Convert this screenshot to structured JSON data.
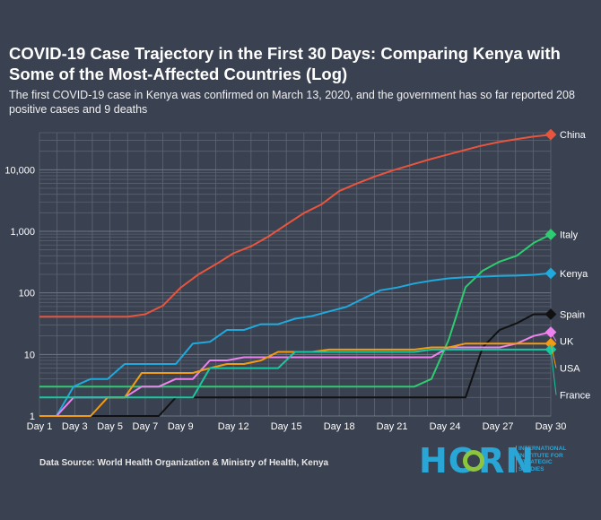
{
  "header": {
    "title": "COVID-19 Case Trajectory in the First 30 Days: Comparing Kenya with Some of the Most-Affected Countries (Log)",
    "subtitle": "The first COVID-19 case in Kenya was confirmed on March 13, 2020, and the government has so far reported 208 positive cases and 9 deaths"
  },
  "footer": {
    "source": "Data Source: World Health Organization & Ministry of Health, Kenya",
    "logo_text": "HORN",
    "logo_subtext": "INTERNATIONAL INSTITUTE FOR STRATEGIC STUDIES"
  },
  "chart_data": {
    "type": "line",
    "yscale": "log",
    "ylim": [
      1,
      40000
    ],
    "xlim": [
      1,
      30
    ],
    "y_ticks": [
      {
        "value": 1,
        "label": "1"
      },
      {
        "value": 10,
        "label": "10"
      },
      {
        "value": 100,
        "label": "100"
      },
      {
        "value": 1000,
        "label": "1,000"
      },
      {
        "value": 10000,
        "label": "10,000"
      }
    ],
    "x_ticks": [
      {
        "value": 1,
        "label": "Day 1"
      },
      {
        "value": 3,
        "label": "Day 3"
      },
      {
        "value": 5,
        "label": "Day 5"
      },
      {
        "value": 7,
        "label": "Day 7"
      },
      {
        "value": 9,
        "label": "Day 9"
      },
      {
        "value": 12,
        "label": "Day 12"
      },
      {
        "value": 15,
        "label": "Day 15"
      },
      {
        "value": 18,
        "label": "Day 18"
      },
      {
        "value": 21,
        "label": "Day 21"
      },
      {
        "value": 24,
        "label": "Day 24"
      },
      {
        "value": 27,
        "label": "Day 27"
      },
      {
        "value": 30,
        "label": "Day 30"
      }
    ],
    "grid": true,
    "legend": "end-of-line labels",
    "series": [
      {
        "name": "China",
        "color": "#e8553e",
        "values": [
          41,
          41,
          41,
          41,
          41,
          41,
          45,
          62,
          121,
          198,
          291,
          440,
          571,
          830,
          1287,
          1975,
          2744,
          4515,
          5974,
          7711,
          9692,
          11791,
          14380,
          17205,
          20438,
          24324,
          28018,
          31161,
          34546,
          37198
        ]
      },
      {
        "name": "Italy",
        "color": "#2ecc71",
        "values": [
          3,
          3,
          3,
          3,
          3,
          3,
          3,
          3,
          3,
          3,
          3,
          3,
          3,
          3,
          3,
          3,
          3,
          3,
          3,
          3,
          3,
          3,
          3,
          4,
          17,
          124,
          229,
          322,
          400,
          650,
          888
        ]
      },
      {
        "name": "Kenya",
        "color": "#1fa9dc",
        "values": [
          1,
          1,
          3,
          4,
          4,
          7,
          7,
          7,
          7,
          15,
          16,
          25,
          25,
          31,
          31,
          38,
          42,
          50,
          59,
          81,
          110,
          122,
          142,
          158,
          172,
          179,
          184,
          189,
          191,
          197,
          208
        ]
      },
      {
        "name": "Spain",
        "color": "#111111",
        "values": [
          1,
          1,
          1,
          1,
          1,
          1,
          1,
          1,
          2,
          2,
          2,
          2,
          2,
          2,
          2,
          2,
          2,
          2,
          2,
          2,
          2,
          2,
          2,
          2,
          2,
          2,
          13,
          25,
          32,
          45,
          45
        ]
      },
      {
        "name": "UK",
        "color": "#ee82ee",
        "values": [
          1,
          1,
          2,
          2,
          2,
          2,
          3,
          3,
          4,
          4,
          8,
          8,
          9,
          9,
          9,
          9,
          9,
          9,
          9,
          9,
          9,
          9,
          9,
          9,
          13,
          13,
          13,
          13,
          15,
          20,
          23
        ]
      },
      {
        "name": "USA",
        "color": "#f39c12",
        "values": [
          1,
          1,
          1,
          1,
          2,
          2,
          5,
          5,
          5,
          5,
          6,
          7,
          7,
          8,
          11,
          11,
          11,
          12,
          12,
          12,
          12,
          12,
          12,
          13,
          13,
          15,
          15,
          15,
          15,
          15,
          15
        ]
      },
      {
        "name": "France",
        "color": "#17c8a0",
        "values": [
          2,
          2,
          2,
          2,
          2,
          2,
          2,
          2,
          2,
          2,
          6,
          6,
          6,
          6,
          6,
          11,
          11,
          11,
          11,
          11,
          11,
          11,
          11,
          12,
          12,
          12,
          12,
          12,
          12,
          12,
          12
        ]
      }
    ]
  }
}
